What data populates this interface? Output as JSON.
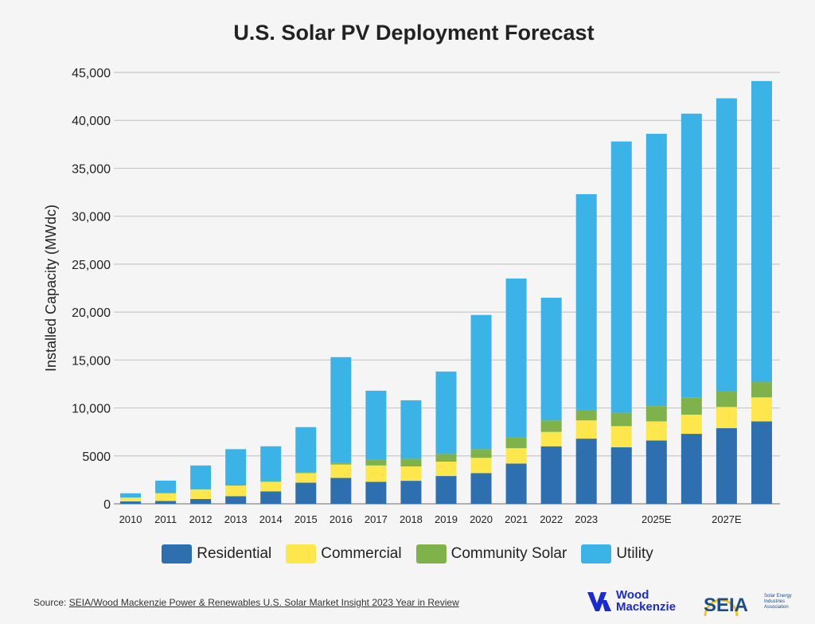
{
  "chart_data": {
    "type": "bar",
    "stacked": true,
    "title": "U.S. Solar PV Deployment Forecast",
    "ylabel": "Installed Capacity (MWdc)",
    "xlabel": "",
    "ylim": [
      0,
      45000
    ],
    "yticks": [
      0,
      5000,
      10000,
      15000,
      20000,
      25000,
      30000,
      35000,
      40000,
      45000
    ],
    "ytick_labels": [
      "0",
      "5000",
      "10,000",
      "15,000",
      "20,000",
      "25,000",
      "30,000",
      "35,000",
      "40,000",
      "45,000"
    ],
    "grid": true,
    "legend_position": "bottom",
    "categories": [
      "2010",
      "2011",
      "2012",
      "2013",
      "2014",
      "2015",
      "2016",
      "2017",
      "2018",
      "2019",
      "2020",
      "2021",
      "2022",
      "2023",
      "",
      "2025E",
      "",
      "2027E",
      ""
    ],
    "series": [
      {
        "name": "Residential",
        "color": "#2e6fb0",
        "values": [
          250,
          300,
          500,
          800,
          1300,
          2200,
          2700,
          2300,
          2400,
          2900,
          3200,
          4200,
          6000,
          6800,
          5900,
          6600,
          7300,
          7900,
          8600
        ]
      },
      {
        "name": "Commercial",
        "color": "#fde74c",
        "values": [
          400,
          800,
          1000,
          1100,
          1000,
          1000,
          1400,
          1700,
          1500,
          1500,
          1600,
          1600,
          1500,
          1900,
          2200,
          2000,
          2000,
          2200,
          2500
        ]
      },
      {
        "name": "Community Solar",
        "color": "#7fb24a",
        "values": [
          10,
          20,
          30,
          50,
          60,
          100,
          200,
          600,
          800,
          800,
          900,
          1100,
          1200,
          1100,
          1400,
          1600,
          1800,
          1600,
          1600
        ]
      },
      {
        "name": "Utility",
        "color": "#3bb3e6",
        "values": [
          440,
          1300,
          2470,
          3750,
          3640,
          4700,
          11000,
          7200,
          6100,
          8600,
          14000,
          16600,
          12800,
          22500,
          28300,
          28400,
          29600,
          30600,
          31400
        ]
      }
    ]
  },
  "source": {
    "prefix": "Source: ",
    "link_text": "SEIA/Wood Mackenzie Power & Renewables U.S. Solar Market Insight 2023 Year in Review"
  },
  "logos": {
    "wood_mackenzie": "Wood Mackenzie",
    "seia_acronym": "SEIA",
    "seia_full": "Solar Energy Industries Association"
  }
}
